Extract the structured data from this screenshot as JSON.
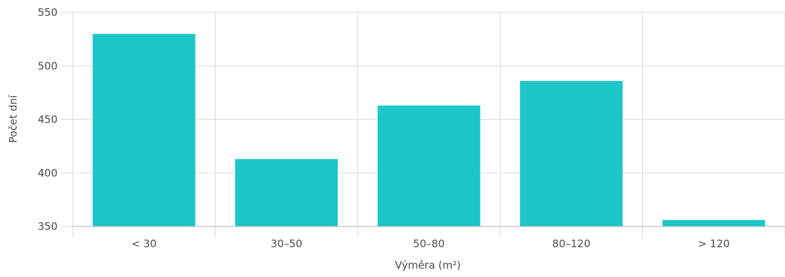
{
  "chart_data": {
    "type": "bar",
    "categories": [
      "< 30",
      "30–50",
      "50–80",
      "80–120",
      "> 120"
    ],
    "values": [
      530,
      413,
      463,
      486,
      356
    ],
    "xlabel": "Výměra (m²)",
    "ylabel": "Počet dní",
    "ylim": [
      350,
      550
    ],
    "yticks": [
      350,
      400,
      450,
      500,
      550
    ],
    "grid": true,
    "legend": "none",
    "colors": {
      "bar": "#1cc6c9",
      "grid": "#d9d9d9",
      "axis": "#b0b0b0",
      "text": "#4a4a4a"
    }
  }
}
